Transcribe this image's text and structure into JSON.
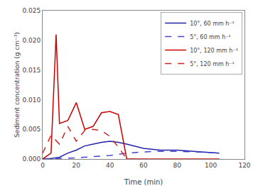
{
  "chart_data": {
    "type": "line",
    "xlabel": "Time (min)",
    "ylabel": "Sediment concentration (g cm⁻³)",
    "series": [
      {
        "name": "10°, 60 mm h⁻¹",
        "color": "#2222AA",
        "line_style": "solid",
        "x": [
          0,
          5,
          10,
          15,
          20,
          25,
          30,
          35,
          40,
          45,
          50,
          60,
          70,
          80,
          90,
          105
        ],
        "values": [
          0.0,
          0.0001,
          0.0003,
          0.001,
          0.0015,
          0.0022,
          0.0025,
          0.0028,
          0.003,
          0.0028,
          0.0025,
          0.0018,
          0.0015,
          0.0015,
          0.0013,
          0.001
        ]
      },
      {
        "name": "5°, 60 mm h⁻¹",
        "color": "#4444CC",
        "line_style": "dashed",
        "x": [
          0,
          10,
          20,
          30,
          40,
          50,
          60,
          70,
          80,
          90,
          105
        ],
        "values": [
          0.0,
          0.0001,
          0.0002,
          0.0004,
          0.0006,
          0.001,
          0.0012,
          0.0013,
          0.0013,
          0.0012,
          0.001
        ]
      },
      {
        "name": "10°, 120 mm h⁻¹",
        "color": "#CC0000",
        "line_style": "solid",
        "x": [
          0,
          5,
          8,
          10,
          15,
          20,
          25,
          30,
          35,
          40,
          45,
          50,
          60,
          70,
          80,
          90,
          105
        ],
        "values": [
          0.0,
          0.001,
          0.021,
          0.006,
          0.0065,
          0.0095,
          0.005,
          0.0055,
          0.0078,
          0.008,
          0.0075,
          0.0,
          0.0,
          0.0,
          0.0,
          0.0,
          0.0
        ]
      },
      {
        "name": "5°, 120 mm h⁻¹",
        "color": "#CC2222",
        "line_style": "dashed",
        "x": [
          0,
          5,
          10,
          15,
          20,
          25,
          30,
          35,
          40,
          45,
          50,
          55
        ],
        "values": [
          0.001,
          0.004,
          0.0025,
          0.0055,
          0.003,
          0.0048,
          0.005,
          0.0048,
          0.0038,
          0.002,
          0.0,
          0.0
        ]
      }
    ],
    "xlim": [
      0,
      120
    ],
    "ylim": [
      0.0,
      0.025
    ],
    "xticks": [
      0,
      20,
      40,
      60,
      80,
      100,
      120
    ],
    "yticks": [
      {
        "value": 0.0,
        "label": "0.000"
      },
      0.005,
      {
        "value": 0.01,
        "label": "0.010"
      },
      0.015,
      {
        "value": 0.02,
        "label": "0.020"
      },
      0.025
    ],
    "grid": false,
    "legend": "upper right"
  }
}
